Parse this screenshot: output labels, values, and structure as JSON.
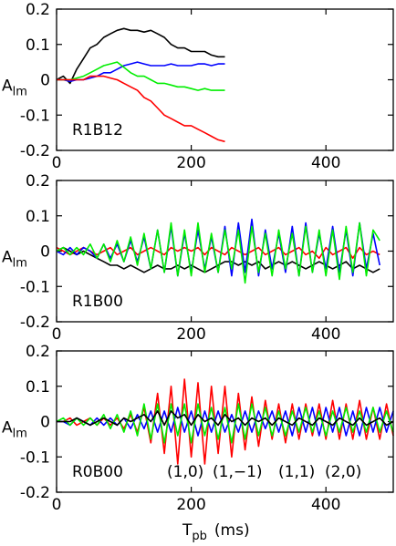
{
  "chart_data": [
    {
      "type": "line",
      "annotation": "R1B12",
      "ylabel": "A",
      "ylabel_sub": "lm",
      "xlim": [
        0,
        500
      ],
      "ylim": [
        -0.2,
        0.2
      ],
      "xticks": [
        0,
        200,
        400
      ],
      "yticks": [
        0.2,
        0.1,
        0,
        -0.1,
        -0.2
      ],
      "x": [
        0,
        10,
        20,
        30,
        40,
        50,
        60,
        70,
        80,
        90,
        100,
        110,
        120,
        130,
        140,
        150,
        160,
        170,
        180,
        190,
        200,
        210,
        220,
        230,
        240,
        250
      ],
      "series": [
        {
          "color": "#000000",
          "values": [
            0,
            0.01,
            -0.01,
            0.03,
            0.06,
            0.09,
            0.1,
            0.12,
            0.13,
            0.14,
            0.145,
            0.14,
            0.14,
            0.135,
            0.14,
            0.13,
            0.12,
            0.1,
            0.09,
            0.09,
            0.08,
            0.08,
            0.08,
            0.07,
            0.065,
            0.065
          ]
        },
        {
          "color": "#0000ff",
          "values": [
            0,
            0,
            -0.005,
            0,
            0,
            0.005,
            0.01,
            0.02,
            0.02,
            0.03,
            0.04,
            0.045,
            0.05,
            0.045,
            0.04,
            0.04,
            0.04,
            0.045,
            0.04,
            0.04,
            0.04,
            0.045,
            0.045,
            0.04,
            0.045,
            0.045
          ]
        },
        {
          "color": "#00ee00",
          "values": [
            0,
            0,
            0,
            0.005,
            0.01,
            0.02,
            0.03,
            0.04,
            0.045,
            0.05,
            0.035,
            0.02,
            0.01,
            0.01,
            0,
            -0.01,
            -0.01,
            -0.015,
            -0.02,
            -0.02,
            -0.025,
            -0.03,
            -0.025,
            -0.03,
            -0.03,
            -0.03
          ]
        },
        {
          "color": "#ff0000",
          "values": [
            0,
            0,
            0,
            0,
            0,
            0.01,
            0.01,
            0.01,
            0.005,
            0,
            -0.01,
            -0.02,
            -0.03,
            -0.05,
            -0.06,
            -0.08,
            -0.1,
            -0.11,
            -0.12,
            -0.13,
            -0.13,
            -0.14,
            -0.15,
            -0.16,
            -0.17,
            -0.175
          ]
        }
      ]
    },
    {
      "type": "line",
      "annotation": "R1B00",
      "ylabel": "A",
      "ylabel_sub": "lm",
      "xlim": [
        0,
        500
      ],
      "ylim": [
        -0.2,
        0.2
      ],
      "xticks": [
        0,
        200,
        400
      ],
      "yticks": [
        0.2,
        0.1,
        0,
        -0.1,
        -0.2
      ],
      "x": [
        0,
        10,
        20,
        30,
        40,
        50,
        60,
        70,
        80,
        90,
        100,
        110,
        120,
        130,
        140,
        150,
        160,
        170,
        180,
        190,
        200,
        210,
        220,
        230,
        240,
        250,
        260,
        270,
        280,
        290,
        300,
        310,
        320,
        330,
        340,
        350,
        360,
        370,
        380,
        390,
        400,
        410,
        420,
        430,
        440,
        450,
        460,
        470,
        480
      ],
      "series": [
        {
          "color": "#ff0000",
          "values": [
            0.01,
            0,
            -0.01,
            0,
            0.01,
            0,
            -0.01,
            0,
            0.01,
            -0.01,
            0,
            0.01,
            -0.01,
            0,
            0.01,
            0,
            -0.01,
            0.01,
            0,
            0.01,
            0,
            0.01,
            -0.01,
            0.01,
            0,
            -0.01,
            0.01,
            0,
            -0.01,
            0,
            0.01,
            -0.01,
            0,
            0.01,
            -0.01,
            0,
            0.01,
            -0.01,
            0,
            -0.02,
            0.01,
            -0.01,
            0,
            0.01,
            -0.02,
            0.01,
            -0.01,
            0,
            -0.01
          ]
        },
        {
          "color": "#000000",
          "values": [
            0,
            0.01,
            0,
            -0.01,
            0,
            -0.01,
            -0.02,
            -0.03,
            -0.04,
            -0.04,
            -0.05,
            -0.04,
            -0.05,
            -0.06,
            -0.05,
            -0.04,
            -0.05,
            -0.05,
            -0.04,
            -0.05,
            -0.04,
            -0.05,
            -0.06,
            -0.05,
            -0.04,
            -0.03,
            -0.03,
            -0.04,
            -0.03,
            -0.04,
            -0.03,
            -0.05,
            -0.04,
            -0.03,
            -0.04,
            -0.03,
            -0.04,
            -0.05,
            -0.04,
            -0.03,
            -0.04,
            -0.05,
            -0.04,
            -0.03,
            -0.05,
            -0.04,
            -0.05,
            -0.06,
            -0.05
          ]
        },
        {
          "color": "#0000ff",
          "values": [
            0,
            -0.01,
            0.01,
            -0.01,
            0.01,
            0,
            -0.02,
            0.02,
            -0.02,
            0.02,
            -0.03,
            0.03,
            -0.03,
            0.04,
            -0.05,
            0.06,
            -0.06,
            0.07,
            -0.07,
            0.05,
            -0.06,
            0.06,
            -0.05,
            0.04,
            -0.06,
            0.07,
            -0.07,
            0.08,
            -0.06,
            0.09,
            -0.07,
            0.06,
            -0.05,
            0.05,
            -0.06,
            0.07,
            -0.07,
            0.08,
            -0.06,
            0.05,
            -0.05,
            0.07,
            -0.06,
            0.06,
            -0.07,
            0.08,
            -0.05,
            0.05,
            -0.04
          ]
        },
        {
          "color": "#00ee00",
          "values": [
            0,
            0.01,
            -0.01,
            0.01,
            -0.01,
            0.02,
            -0.02,
            0.02,
            -0.03,
            0.03,
            -0.03,
            0.04,
            -0.04,
            0.05,
            -0.05,
            0.06,
            -0.06,
            0.08,
            -0.07,
            0.06,
            -0.07,
            0.08,
            -0.06,
            0.05,
            -0.06,
            0.06,
            -0.05,
            0.06,
            -0.09,
            0.07,
            -0.06,
            0.05,
            -0.07,
            0.06,
            -0.05,
            0.05,
            -0.07,
            0.07,
            -0.06,
            0.06,
            -0.07,
            0.06,
            -0.08,
            0.07,
            -0.06,
            0.08,
            -0.07,
            0.06,
            0.03
          ]
        }
      ]
    },
    {
      "type": "line",
      "annotation": "R0B00",
      "ylabel": "A",
      "ylabel_sub": "lm",
      "xlabel": "T",
      "xlabel_sub": "pb",
      "xlabel_unit": "(ms)",
      "xlim": [
        0,
        500
      ],
      "ylim": [
        -0.2,
        0.2
      ],
      "xticks": [
        0,
        200,
        400
      ],
      "yticks": [
        0.2,
        0.1,
        0,
        -0.1,
        -0.2
      ],
      "x": [
        0,
        10,
        20,
        30,
        40,
        50,
        60,
        70,
        80,
        90,
        100,
        110,
        120,
        130,
        140,
        150,
        160,
        170,
        180,
        190,
        200,
        210,
        220,
        230,
        240,
        250,
        260,
        270,
        280,
        290,
        300,
        310,
        320,
        330,
        340,
        350,
        360,
        370,
        380,
        390,
        400,
        410,
        420,
        430,
        440,
        450,
        460,
        470,
        480,
        490,
        500
      ],
      "series": [
        {
          "name": "(1,0)",
          "color": "#ff0000",
          "values": [
            0,
            0,
            0.01,
            -0.01,
            0,
            0.01,
            -0.01,
            0.01,
            -0.01,
            0.01,
            -0.02,
            0.02,
            -0.03,
            0.04,
            -0.06,
            0.08,
            -0.09,
            0.1,
            -0.12,
            0.12,
            -0.1,
            0.11,
            -0.12,
            0.1,
            -0.09,
            0.1,
            -0.1,
            0.08,
            -0.08,
            0.07,
            -0.07,
            0.06,
            -0.05,
            0.05,
            -0.06,
            0.05,
            -0.05,
            0.05,
            -0.04,
            0.05,
            -0.05,
            0.06,
            -0.05,
            0.05,
            -0.05,
            0.06,
            -0.05,
            0.04,
            -0.05,
            0.05,
            -0.04
          ]
        },
        {
          "name": "(1,−1)",
          "color": "#0000ff",
          "values": [
            0,
            0,
            -0.01,
            0.01,
            0,
            -0.01,
            0.01,
            -0.01,
            0.01,
            -0.01,
            0.01,
            -0.02,
            0.02,
            -0.02,
            0.03,
            -0.03,
            0.03,
            -0.03,
            0.04,
            -0.03,
            0.03,
            -0.04,
            0.03,
            -0.03,
            0.03,
            -0.03,
            0.02,
            -0.03,
            0.03,
            -0.03,
            0.03,
            -0.02,
            0.03,
            -0.03,
            0.03,
            -0.04,
            0.04,
            -0.03,
            0.04,
            -0.04,
            0.04,
            -0.03,
            0.04,
            -0.04,
            0.03,
            -0.04,
            0.04,
            -0.03,
            0.04,
            -0.03,
            0.03
          ]
        },
        {
          "name": "(1,1)",
          "color": "#00ee00",
          "values": [
            0,
            0.01,
            -0.01,
            0.01,
            -0.01,
            0.01,
            -0.01,
            0.02,
            -0.02,
            0.02,
            -0.03,
            0.03,
            -0.04,
            0.05,
            -0.05,
            0.05,
            -0.06,
            0.05,
            -0.04,
            0.05,
            -0.06,
            0.05,
            -0.04,
            0.04,
            -0.05,
            0.04,
            -0.06,
            0.05,
            -0.05,
            0.05,
            -0.04,
            0.04,
            -0.04,
            0.03,
            -0.04,
            0.03,
            -0.03,
            0.04,
            -0.03,
            0.03,
            -0.04,
            0.03,
            -0.03,
            0.04,
            -0.03,
            0.03,
            -0.03,
            0.04,
            -0.03,
            0.03,
            -0.03
          ]
        },
        {
          "name": "(2,0)",
          "color": "#000000",
          "values": [
            0,
            0,
            0,
            0.01,
            0,
            -0.01,
            0,
            0.01,
            0,
            -0.01,
            0.01,
            0,
            0.01,
            0.02,
            0,
            0.03,
            -0.01,
            0.03,
            0.01,
            0.02,
            -0.01,
            0.02,
            0,
            0.01,
            -0.01,
            0.02,
            0,
            0.01,
            -0.01,
            0.01,
            0,
            0.01,
            -0.01,
            0.01,
            0,
            -0.01,
            0.01,
            0,
            -0.01,
            0.01,
            0,
            -0.01,
            0.01,
            0,
            -0.01,
            0.01,
            -0.01,
            0,
            0.01,
            -0.01,
            0
          ]
        }
      ]
    }
  ]
}
